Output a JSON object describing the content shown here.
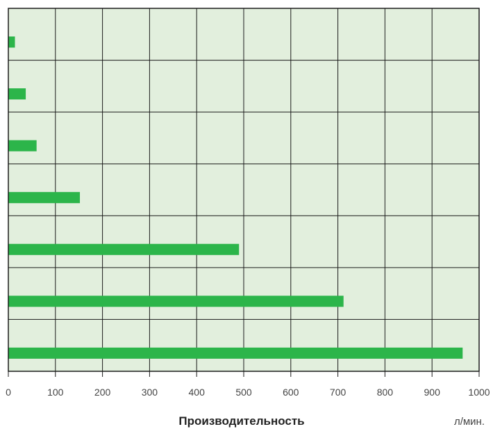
{
  "chart_data": {
    "type": "bar",
    "orientation": "horizontal",
    "values": [
      14,
      37,
      60,
      152,
      490,
      712,
      965
    ],
    "xlabel": "Производительность",
    "unit": "л/мин.",
    "xlim": [
      0,
      1000
    ],
    "xticks": [
      "0",
      "100",
      "200",
      "300",
      "400",
      "500",
      "600",
      "700",
      "800",
      "900",
      "1000"
    ],
    "grid": true,
    "legend": "none"
  },
  "colors": {
    "plot_background": "#e2efdd",
    "bar": "#2cb54a",
    "grid": "#1a1a1a"
  }
}
